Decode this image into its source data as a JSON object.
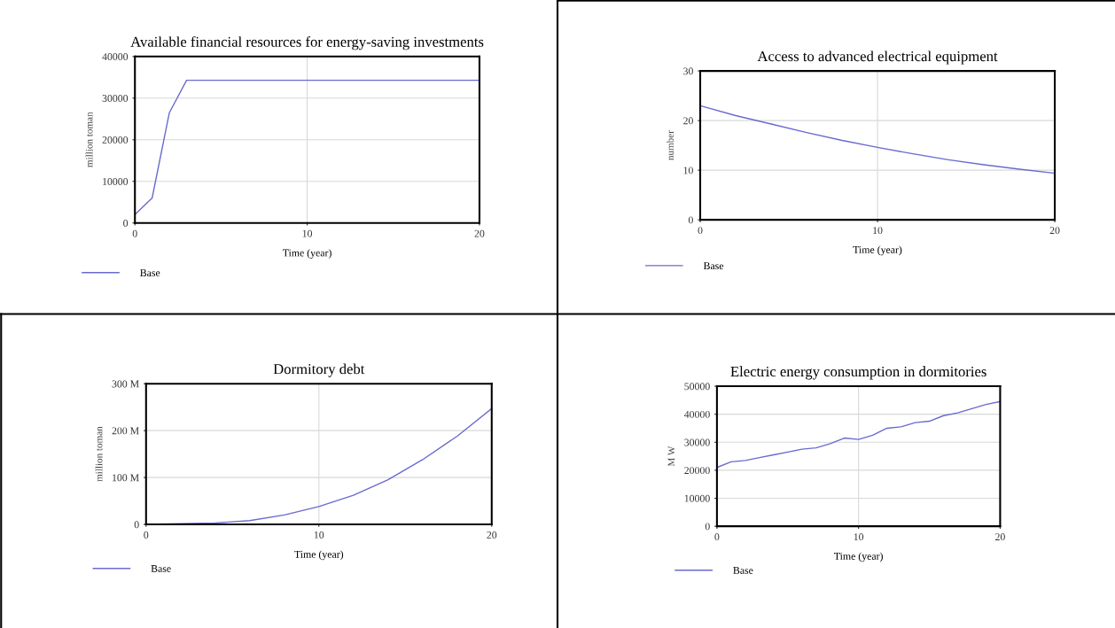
{
  "chart_data": [
    {
      "type": "line",
      "title": "Available financial resources for energy-saving investments",
      "xlabel": "Time (year)",
      "ylabel": "million toman",
      "x": [
        0,
        1,
        2,
        3,
        10,
        20
      ],
      "xlim": [
        0,
        20
      ],
      "xticks": [
        0,
        10,
        20
      ],
      "ylim": [
        0,
        40000
      ],
      "yticks": [
        0,
        10000,
        20000,
        30000,
        40000
      ],
      "grid": true,
      "legend": "bottom left",
      "series": [
        {
          "name": "Base",
          "color": "#6a6ad0",
          "values": [
            2000,
            6000,
            26500,
            34300,
            34300,
            34300
          ]
        }
      ]
    },
    {
      "type": "line",
      "title": "Access to advanced electrical equipment",
      "xlabel": "Time (year)",
      "ylabel": "number",
      "x": [
        0,
        2,
        4,
        6,
        8,
        10,
        12,
        14,
        16,
        18,
        20
      ],
      "xlim": [
        0,
        20
      ],
      "xticks": [
        0,
        10,
        20
      ],
      "ylim": [
        0,
        30
      ],
      "yticks": [
        0,
        10,
        20,
        30
      ],
      "grid": true,
      "legend": "bottom left",
      "series": [
        {
          "name": "Base",
          "color": "#6a6ad0",
          "values": [
            23,
            21,
            19.3,
            17.6,
            16,
            14.6,
            13.3,
            12.1,
            11.1,
            10.2,
            9.4
          ]
        }
      ]
    },
    {
      "type": "line",
      "title": "Dormitory debt",
      "xlabel": "Time (year)",
      "ylabel": "million toman",
      "x": [
        0,
        4,
        6,
        8,
        10,
        12,
        14,
        16,
        18,
        20
      ],
      "xlim": [
        0,
        20
      ],
      "xticks": [
        0,
        10,
        20
      ],
      "ylim": [
        0,
        300000000
      ],
      "yticks": [
        0,
        {
          "value": 100000000,
          "label": "100 M"
        },
        {
          "value": 200000000,
          "label": "200 M"
        },
        {
          "value": 300000000,
          "label": "300 M"
        }
      ],
      "grid": true,
      "legend": "bottom left",
      "series": [
        {
          "name": "Base",
          "color": "#6a6ad0",
          "values": [
            0,
            3000000,
            8000000,
            20000000,
            38000000,
            62000000,
            95000000,
            138000000,
            188000000,
            247000000
          ]
        }
      ]
    },
    {
      "type": "line",
      "title": "Electric energy consumption in dormitories",
      "xlabel": "Time (year)",
      "ylabel": "M W",
      "x": [
        0,
        1,
        2,
        3,
        4,
        5,
        6,
        7,
        8,
        9,
        10,
        11,
        12,
        13,
        14,
        15,
        16,
        17,
        18,
        19,
        20
      ],
      "xlim": [
        0,
        20
      ],
      "xticks": [
        0,
        10,
        20
      ],
      "ylim": [
        0,
        50000
      ],
      "yticks": [
        0,
        10000,
        20000,
        30000,
        40000,
        50000
      ],
      "grid": true,
      "legend": "bottom left",
      "series": [
        {
          "name": "Base",
          "color": "#6a6ad0",
          "values": [
            21000,
            23000,
            23500,
            24500,
            25500,
            26500,
            27500,
            28000,
            29500,
            31500,
            31000,
            32500,
            35000,
            35500,
            37000,
            37500,
            39500,
            40500,
            42000,
            43500,
            44500
          ]
        }
      ]
    }
  ]
}
